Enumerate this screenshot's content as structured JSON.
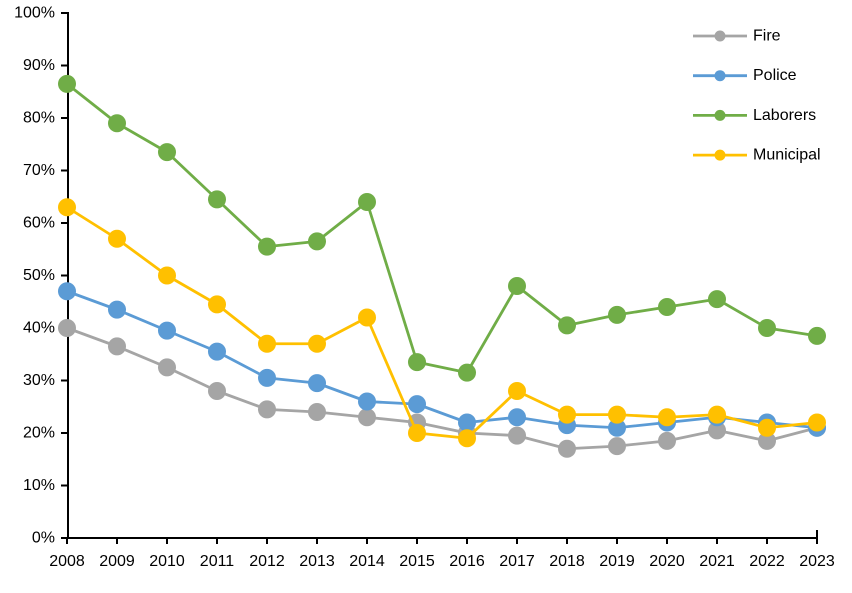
{
  "chart_data": {
    "type": "line",
    "title": "",
    "xlabel": "",
    "ylabel": "",
    "x": [
      2008,
      2009,
      2010,
      2011,
      2012,
      2013,
      2014,
      2015,
      2016,
      2017,
      2018,
      2019,
      2020,
      2021,
      2022,
      2023
    ],
    "x_tick_labels": [
      "2008",
      "2009",
      "2010",
      "2011",
      "2012",
      "2013",
      "2014",
      "2015",
      "2016",
      "2017",
      "2018",
      "2019",
      "2020",
      "2021",
      "2022",
      "2023"
    ],
    "ylim": [
      0,
      100
    ],
    "y_tick_step": 10,
    "y_tick_labels": [
      "0%",
      "10%",
      "20%",
      "30%",
      "40%",
      "50%",
      "60%",
      "70%",
      "80%",
      "90%",
      "100%"
    ],
    "grid": false,
    "marker": "circle",
    "legend_position": "top-right",
    "series": [
      {
        "name": "Fire",
        "color": "#A5A5A5",
        "values": [
          40,
          36.5,
          32.5,
          28,
          24.5,
          24,
          23,
          22,
          20,
          19.5,
          17,
          17.5,
          18.5,
          20.5,
          18.5,
          21
        ]
      },
      {
        "name": "Police",
        "color": "#5B9BD5",
        "values": [
          47,
          43.5,
          39.5,
          35.5,
          30.5,
          29.5,
          26,
          25.5,
          22,
          23,
          21.5,
          21,
          22,
          23,
          22,
          21
        ]
      },
      {
        "name": "Laborers",
        "color": "#70AD47",
        "values": [
          86.5,
          79,
          73.5,
          64.5,
          55.5,
          56.5,
          64,
          33.5,
          31.5,
          48,
          40.5,
          42.5,
          44,
          45.5,
          40,
          38.5
        ]
      },
      {
        "name": "Municipal",
        "color": "#FFC000",
        "values": [
          63,
          57,
          50,
          44.5,
          37,
          37,
          42,
          20,
          19,
          28,
          23.5,
          23.5,
          23,
          23.5,
          21,
          22
        ]
      }
    ],
    "legend": [
      "Fire",
      "Police",
      "Laborers",
      "Municipal"
    ]
  },
  "colors": {
    "axis": "#000000",
    "text": "#000000",
    "background": "#FFFFFF"
  }
}
